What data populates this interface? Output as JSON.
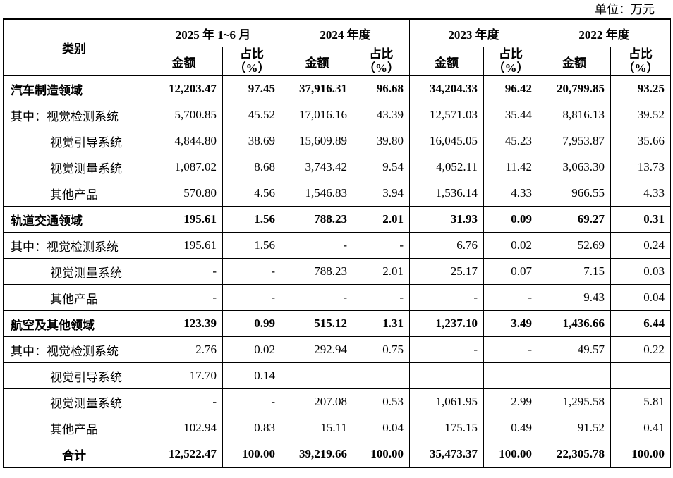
{
  "unit": "单位：万元",
  "header": {
    "category": "类别",
    "periods": [
      "2025 年 1~6 月",
      "2024 年度",
      "2023 年度",
      "2022 年度"
    ],
    "amount": "金额",
    "share": "占比（%）"
  },
  "table": {
    "rows": [
      [
        "汽车制造领域",
        "12,203.47",
        "97.45",
        "37,916.31",
        "96.68",
        "34,204.33",
        "96.42",
        "20,799.85",
        "93.25"
      ],
      [
        "其中：视觉检测系统",
        "5,700.85",
        "45.52",
        "17,016.16",
        "43.39",
        "12,571.03",
        "35.44",
        "8,816.13",
        "39.52"
      ],
      [
        "视觉引导系统",
        "4,844.80",
        "38.69",
        "15,609.89",
        "39.80",
        "16,045.05",
        "45.23",
        "7,953.87",
        "35.66"
      ],
      [
        "视觉测量系统",
        "1,087.02",
        "8.68",
        "3,743.42",
        "9.54",
        "4,052.11",
        "11.42",
        "3,063.30",
        "13.73"
      ],
      [
        "其他产品",
        "570.80",
        "4.56",
        "1,546.83",
        "3.94",
        "1,536.14",
        "4.33",
        "966.55",
        "4.33"
      ],
      [
        "轨道交通领域",
        "195.61",
        "1.56",
        "788.23",
        "2.01",
        "31.93",
        "0.09",
        "69.27",
        "0.31"
      ],
      [
        "其中：视觉检测系统",
        "195.61",
        "1.56",
        "-",
        "-",
        "6.76",
        "0.02",
        "52.69",
        "0.24"
      ],
      [
        "视觉测量系统",
        "-",
        "-",
        "788.23",
        "2.01",
        "25.17",
        "0.07",
        "7.15",
        "0.03"
      ],
      [
        "其他产品",
        "-",
        "-",
        "-",
        "-",
        "-",
        "-",
        "9.43",
        "0.04"
      ],
      [
        "航空及其他领域",
        "123.39",
        "0.99",
        "515.12",
        "1.31",
        "1,237.10",
        "3.49",
        "1,436.66",
        "6.44"
      ],
      [
        "其中：视觉检测系统",
        "2.76",
        "0.02",
        "292.94",
        "0.75",
        "-",
        "-",
        "49.57",
        "0.22"
      ],
      [
        "视觉引导系统",
        "17.70",
        "0.14",
        null,
        null,
        null,
        null,
        null,
        null
      ],
      [
        "视觉测量系统",
        "-",
        "-",
        "207.08",
        "0.53",
        "1,061.95",
        "2.99",
        "1,295.58",
        "5.81"
      ],
      [
        "其他产品",
        "102.94",
        "0.83",
        "15.11",
        "0.04",
        "175.15",
        "0.49",
        "91.52",
        "0.41"
      ],
      [
        "合计",
        "12,522.47",
        "100.00",
        "39,219.66",
        "100.00",
        "35,473.37",
        "100.00",
        "22,305.78",
        "100.00"
      ]
    ]
  }
}
